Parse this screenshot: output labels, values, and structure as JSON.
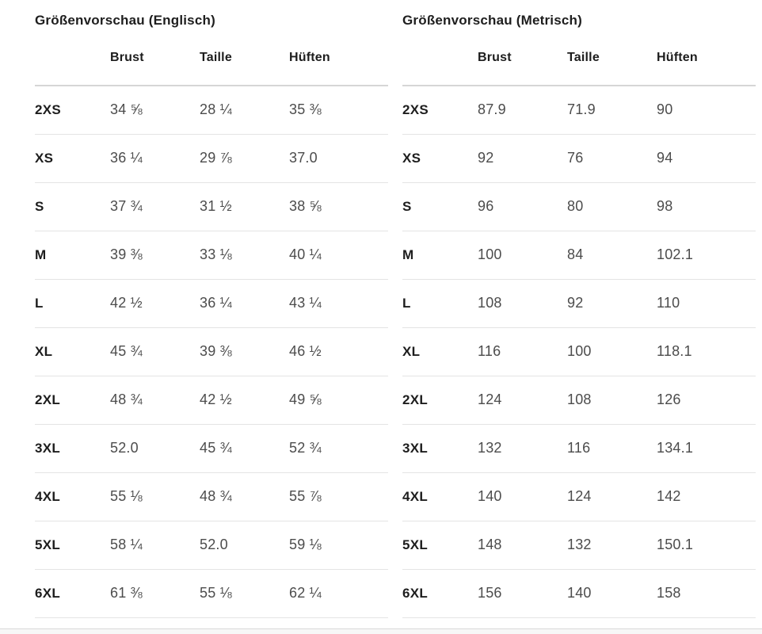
{
  "tables": [
    {
      "title": "Größenvorschau (Englisch)",
      "columns": [
        "Brust",
        "Taille",
        "Hüften"
      ],
      "rows": [
        {
          "size": "2XS",
          "values": [
            "34 ⅝",
            "28 ¼",
            "35 ⅜"
          ]
        },
        {
          "size": "XS",
          "values": [
            "36 ¼",
            "29 ⅞",
            "37.0"
          ]
        },
        {
          "size": "S",
          "values": [
            "37 ¾",
            "31 ½",
            "38 ⅝"
          ]
        },
        {
          "size": "M",
          "values": [
            "39 ⅜",
            "33 ⅛",
            "40 ¼"
          ]
        },
        {
          "size": "L",
          "values": [
            "42 ½",
            "36 ¼",
            "43 ¼"
          ]
        },
        {
          "size": "XL",
          "values": [
            "45 ¾",
            "39 ⅜",
            "46 ½"
          ]
        },
        {
          "size": "2XL",
          "values": [
            "48 ¾",
            "42 ½",
            "49 ⅝"
          ]
        },
        {
          "size": "3XL",
          "values": [
            "52.0",
            "45 ¾",
            "52 ¾"
          ]
        },
        {
          "size": "4XL",
          "values": [
            "55 ⅛",
            "48 ¾",
            "55 ⅞"
          ]
        },
        {
          "size": "5XL",
          "values": [
            "58 ¼",
            "52.0",
            "59 ⅛"
          ]
        },
        {
          "size": "6XL",
          "values": [
            "61 ⅜",
            "55 ⅛",
            "62 ¼"
          ]
        }
      ]
    },
    {
      "title": "Größenvorschau (Metrisch)",
      "columns": [
        "Brust",
        "Taille",
        "Hüften"
      ],
      "rows": [
        {
          "size": "2XS",
          "values": [
            "87.9",
            "71.9",
            "90"
          ]
        },
        {
          "size": "XS",
          "values": [
            "92",
            "76",
            "94"
          ]
        },
        {
          "size": "S",
          "values": [
            "96",
            "80",
            "98"
          ]
        },
        {
          "size": "M",
          "values": [
            "100",
            "84",
            "102.1"
          ]
        },
        {
          "size": "L",
          "values": [
            "108",
            "92",
            "110"
          ]
        },
        {
          "size": "XL",
          "values": [
            "116",
            "100",
            "118.1"
          ]
        },
        {
          "size": "2XL",
          "values": [
            "124",
            "108",
            "126"
          ]
        },
        {
          "size": "3XL",
          "values": [
            "132",
            "116",
            "134.1"
          ]
        },
        {
          "size": "4XL",
          "values": [
            "140",
            "124",
            "142"
          ]
        },
        {
          "size": "5XL",
          "values": [
            "148",
            "132",
            "150.1"
          ]
        },
        {
          "size": "6XL",
          "values": [
            "156",
            "140",
            "158"
          ]
        }
      ]
    }
  ]
}
